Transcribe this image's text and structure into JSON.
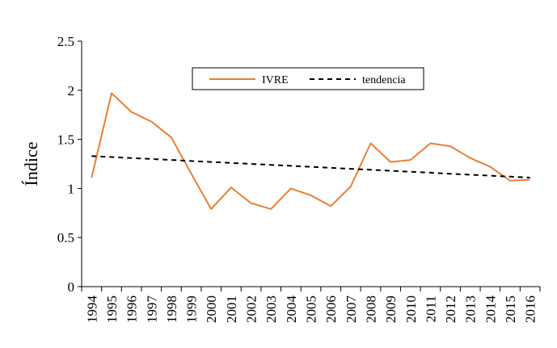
{
  "chart_data": {
    "type": "line",
    "title": "",
    "xlabel": "",
    "ylabel": "Índice",
    "ylim": [
      0,
      2.5
    ],
    "yticks": [
      "0",
      "0.5",
      "1",
      "1.5",
      "2",
      "2.5"
    ],
    "categories": [
      "1994",
      "1995",
      "1996",
      "1997",
      "1998",
      "1999",
      "2000",
      "2001",
      "2002",
      "2003",
      "2004",
      "2005",
      "2006",
      "2007",
      "2008",
      "2009",
      "2010",
      "2011",
      "2012",
      "2013",
      "2014",
      "2015",
      "2016"
    ],
    "series": [
      {
        "name": "IVRE",
        "color": "#ED7D31",
        "style": "solid",
        "values": [
          1.11,
          1.97,
          1.78,
          1.68,
          1.52,
          1.15,
          0.79,
          1.01,
          0.85,
          0.79,
          1.0,
          0.93,
          0.82,
          1.02,
          1.46,
          1.27,
          1.29,
          1.46,
          1.43,
          1.31,
          1.22,
          1.08,
          1.09
        ]
      },
      {
        "name": "tendencia",
        "color": "#000000",
        "style": "dashed",
        "values": [
          1.33,
          1.32,
          1.31,
          1.3,
          1.29,
          1.28,
          1.27,
          1.26,
          1.25,
          1.24,
          1.23,
          1.22,
          1.21,
          1.2,
          1.19,
          1.18,
          1.17,
          1.16,
          1.15,
          1.14,
          1.13,
          1.12,
          1.11
        ]
      }
    ],
    "legend": "top-center",
    "grid": false
  }
}
